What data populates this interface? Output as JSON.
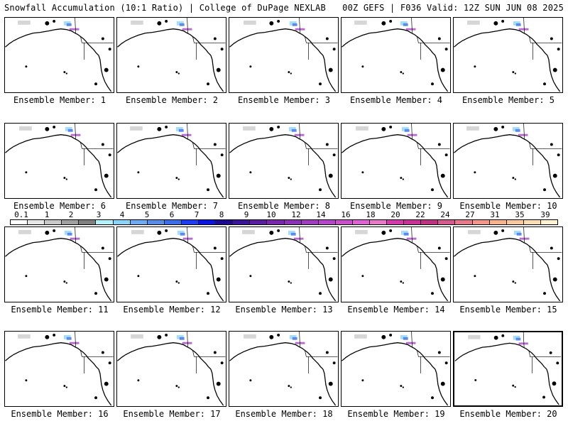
{
  "header": {
    "left": "Snowfall Accumulation (10:1 Ratio) | College of DuPage NEXLAB",
    "right": "00Z GEFS | F036 Valid: 12Z SUN JUN 08 2025"
  },
  "panels": [
    {
      "label": "Ensemble Member: 1"
    },
    {
      "label": "Ensemble Member: 2"
    },
    {
      "label": "Ensemble Member: 3"
    },
    {
      "label": "Ensemble Member: 4"
    },
    {
      "label": "Ensemble Member: 5"
    },
    {
      "label": "Ensemble Member: 6"
    },
    {
      "label": "Ensemble Member: 7"
    },
    {
      "label": "Ensemble Member: 8"
    },
    {
      "label": "Ensemble Member: 9"
    },
    {
      "label": "Ensemble Member: 10"
    },
    {
      "label": "Ensemble Member: 11"
    },
    {
      "label": "Ensemble Member: 12"
    },
    {
      "label": "Ensemble Member: 13"
    },
    {
      "label": "Ensemble Member: 14"
    },
    {
      "label": "Ensemble Member: 15"
    },
    {
      "label": "Ensemble Member: 16"
    },
    {
      "label": "Ensemble Member: 17"
    },
    {
      "label": "Ensemble Member: 18"
    },
    {
      "label": "Ensemble Member: 19"
    },
    {
      "label": "Ensemble Member: 20"
    }
  ],
  "colorbar": {
    "ticks": [
      "0.1",
      "1",
      "2",
      "3",
      "4",
      "5",
      "6",
      "7",
      "8",
      "9",
      "10",
      "12",
      "14",
      "16",
      "18",
      "20",
      "22",
      "24",
      "27",
      "31",
      "35",
      "39"
    ],
    "colors": [
      "#ffffff",
      "#e6e6e6",
      "#c8c8c8",
      "#a0a0a0",
      "#808080",
      "#b4f0f8",
      "#8cd2f4",
      "#6eaaf0",
      "#5a8ce6",
      "#3c6ee6",
      "#1e3cf0",
      "#0a14dc",
      "#1e0a8c",
      "#3c1496",
      "#5a1ea0",
      "#7828aa",
      "#8c32b4",
      "#a03cbe",
      "#b446c8",
      "#c850c8",
      "#dc64d2",
      "#e678c8",
      "#d23caa",
      "#c83296",
      "#be3282",
      "#d25a8c",
      "#e6788c",
      "#f0968c",
      "#f5b48c",
      "#f5c8a0",
      "#fadcb4",
      "#fff0d2"
    ]
  }
}
